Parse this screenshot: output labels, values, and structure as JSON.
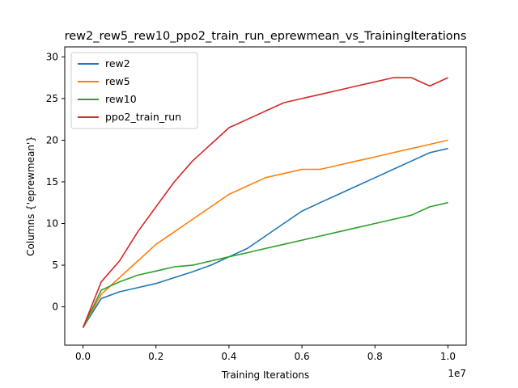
{
  "chart_data": {
    "type": "line",
    "title": "rew2_rew5_rew10_ppo2_train_run_eprewmean_vs_TrainingIterations",
    "xlabel": "Training Iterations",
    "ylabel": "Columns {'eprewmean'}",
    "x_offset_label": "1e7",
    "xlim": [
      -0.05,
      1.05
    ],
    "ylim": [
      -4.6,
      31.2
    ],
    "xticks": [
      0.0,
      0.2,
      0.4,
      0.6,
      0.8,
      1.0
    ],
    "xtick_labels": [
      "0.0",
      "0.2",
      "0.4",
      "0.6",
      "0.8",
      "1.0"
    ],
    "yticks": [
      0,
      5,
      10,
      15,
      20,
      25,
      30
    ],
    "ytick_labels": [
      "0",
      "5",
      "10",
      "15",
      "20",
      "25",
      "30"
    ],
    "grid": false,
    "legend_position": "top-left",
    "x": [
      0.0,
      0.05,
      0.1,
      0.15,
      0.2,
      0.25,
      0.3,
      0.35,
      0.4,
      0.45,
      0.5,
      0.55,
      0.6,
      0.65,
      0.7,
      0.75,
      0.8,
      0.85,
      0.9,
      0.95,
      1.0
    ],
    "series": [
      {
        "name": "rew2",
        "color": "#1f77b4",
        "values": [
          -2.5,
          1.0,
          1.8,
          2.3,
          2.8,
          3.5,
          4.2,
          5.0,
          6.0,
          7.0,
          8.5,
          10.0,
          11.5,
          12.5,
          13.5,
          14.5,
          15.5,
          16.5,
          17.5,
          18.5,
          19.0
        ]
      },
      {
        "name": "rew5",
        "color": "#ff7f0e",
        "values": [
          -2.5,
          1.5,
          3.5,
          5.5,
          7.5,
          9.0,
          10.5,
          12.0,
          13.5,
          14.5,
          15.5,
          16.0,
          16.5,
          16.5,
          17.0,
          17.5,
          18.0,
          18.5,
          19.0,
          19.5,
          20.0
        ]
      },
      {
        "name": "rew10",
        "color": "#2ca02c",
        "values": [
          -2.5,
          2.0,
          3.0,
          3.8,
          4.3,
          4.8,
          5.0,
          5.5,
          6.0,
          6.5,
          7.0,
          7.5,
          8.0,
          8.5,
          9.0,
          9.5,
          10.0,
          10.5,
          11.0,
          12.0,
          12.5
        ]
      },
      {
        "name": "ppo2_train_run",
        "color": "#d62728",
        "values": [
          -2.5,
          3.0,
          5.5,
          9.0,
          12.0,
          15.0,
          17.5,
          19.5,
          21.5,
          22.5,
          23.5,
          24.5,
          25.0,
          25.5,
          26.0,
          26.5,
          27.0,
          27.5,
          27.5,
          26.5,
          27.5
        ]
      }
    ]
  }
}
